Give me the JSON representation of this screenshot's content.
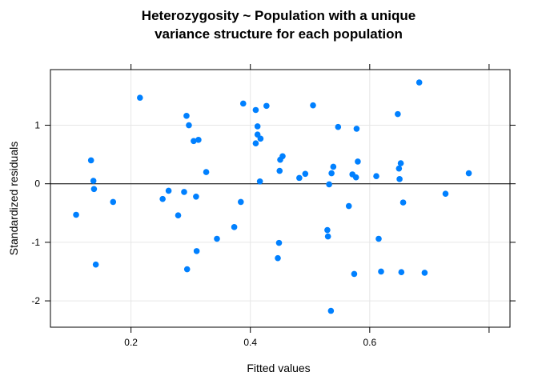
{
  "chart_data": {
    "type": "scatter",
    "title": [
      "Heterozygosity ~ Population with a unique",
      "variance structure for each population"
    ],
    "xlabel": "Fitted values",
    "ylabel": "Standardized residuals",
    "xlim": [
      0.065,
      0.835
    ],
    "ylim": [
      -2.45,
      1.95
    ],
    "xticks": [
      0.2,
      0.4,
      0.6,
      0.8
    ],
    "xtick_labels": [
      "0.2",
      "0.4",
      "0.6",
      ""
    ],
    "yticks": [
      -2,
      -1,
      0,
      1
    ],
    "ytick_labels": [
      "-2",
      "-1",
      "0",
      "1"
    ],
    "grid": true,
    "reference_line_y": 0,
    "point_color": "#0080ff",
    "points": [
      {
        "x": 0.108,
        "y": -0.53
      },
      {
        "x": 0.133,
        "y": 0.4
      },
      {
        "x": 0.137,
        "y": 0.05
      },
      {
        "x": 0.138,
        "y": -0.09
      },
      {
        "x": 0.141,
        "y": -1.38
      },
      {
        "x": 0.17,
        "y": -0.31
      },
      {
        "x": 0.215,
        "y": 1.47
      },
      {
        "x": 0.253,
        "y": -0.26
      },
      {
        "x": 0.263,
        "y": -0.12
      },
      {
        "x": 0.279,
        "y": -0.54
      },
      {
        "x": 0.289,
        "y": -0.14
      },
      {
        "x": 0.293,
        "y": 1.16
      },
      {
        "x": 0.294,
        "y": -1.46
      },
      {
        "x": 0.297,
        "y": 1.0
      },
      {
        "x": 0.305,
        "y": 0.73
      },
      {
        "x": 0.309,
        "y": -0.22
      },
      {
        "x": 0.31,
        "y": -1.15
      },
      {
        "x": 0.313,
        "y": 0.75
      },
      {
        "x": 0.326,
        "y": 0.2
      },
      {
        "x": 0.344,
        "y": -0.94
      },
      {
        "x": 0.373,
        "y": -0.74
      },
      {
        "x": 0.384,
        "y": -0.31
      },
      {
        "x": 0.388,
        "y": 1.37
      },
      {
        "x": 0.409,
        "y": 1.26
      },
      {
        "x": 0.409,
        "y": 0.69
      },
      {
        "x": 0.412,
        "y": 0.98
      },
      {
        "x": 0.412,
        "y": 0.84
      },
      {
        "x": 0.416,
        "y": 0.04
      },
      {
        "x": 0.417,
        "y": 0.77
      },
      {
        "x": 0.427,
        "y": 1.33
      },
      {
        "x": 0.446,
        "y": -1.27
      },
      {
        "x": 0.448,
        "y": -1.01
      },
      {
        "x": 0.449,
        "y": 0.22
      },
      {
        "x": 0.45,
        "y": 0.41
      },
      {
        "x": 0.454,
        "y": 0.47
      },
      {
        "x": 0.482,
        "y": 0.1
      },
      {
        "x": 0.492,
        "y": 0.17
      },
      {
        "x": 0.505,
        "y": 1.34
      },
      {
        "x": 0.529,
        "y": -0.79
      },
      {
        "x": 0.53,
        "y": -0.9
      },
      {
        "x": 0.532,
        "y": -0.01
      },
      {
        "x": 0.535,
        "y": -2.17
      },
      {
        "x": 0.536,
        "y": 0.18
      },
      {
        "x": 0.539,
        "y": 0.29
      },
      {
        "x": 0.547,
        "y": 0.97
      },
      {
        "x": 0.565,
        "y": -0.38
      },
      {
        "x": 0.571,
        "y": 0.16
      },
      {
        "x": 0.574,
        "y": -1.54
      },
      {
        "x": 0.577,
        "y": 0.11
      },
      {
        "x": 0.578,
        "y": 0.94
      },
      {
        "x": 0.58,
        "y": 0.38
      },
      {
        "x": 0.611,
        "y": 0.13
      },
      {
        "x": 0.615,
        "y": -0.94
      },
      {
        "x": 0.619,
        "y": -1.5
      },
      {
        "x": 0.647,
        "y": 1.19
      },
      {
        "x": 0.649,
        "y": 0.26
      },
      {
        "x": 0.65,
        "y": 0.08
      },
      {
        "x": 0.652,
        "y": 0.35
      },
      {
        "x": 0.653,
        "y": -1.51
      },
      {
        "x": 0.656,
        "y": -0.32
      },
      {
        "x": 0.683,
        "y": 1.73
      },
      {
        "x": 0.692,
        "y": -1.52
      },
      {
        "x": 0.727,
        "y": -0.17
      },
      {
        "x": 0.766,
        "y": 0.18
      }
    ]
  }
}
